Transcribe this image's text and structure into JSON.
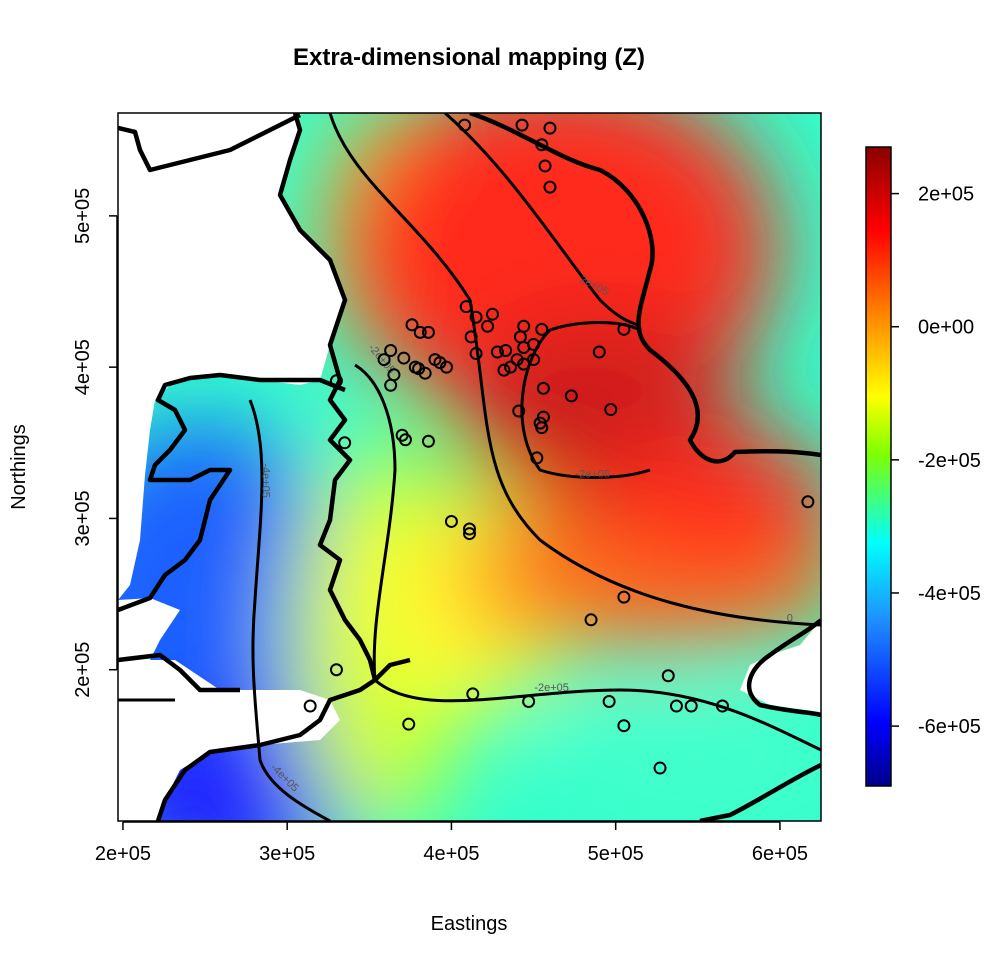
{
  "chart_data": {
    "type": "heatmap",
    "title": "Extra-dimensional mapping (Z)",
    "xlabel": "Eastings",
    "ylabel": "Northings",
    "xlim": [
      197000,
      625000
    ],
    "ylim": [
      100000,
      568000
    ],
    "xticks": [
      200000,
      300000,
      400000,
      500000,
      600000
    ],
    "xtick_labels": [
      "2e+05",
      "3e+05",
      "4e+05",
      "5e+05",
      "6e+05"
    ],
    "yticks": [
      200000,
      300000,
      400000,
      500000
    ],
    "ytick_labels": [
      "2e+05",
      "3e+05",
      "4e+05",
      "5e+05"
    ],
    "colorbar": {
      "range": [
        -690000,
        270000
      ],
      "ticks": [
        200000,
        0,
        -200000,
        -400000,
        -600000
      ],
      "tick_labels": [
        "2e+05",
        "0e+00",
        "-2e+05",
        "-4e+05",
        "-6e+05"
      ],
      "colors": [
        "#8b0000",
        "#ff0000",
        "#ff8c00",
        "#ffff00",
        "#7fff00",
        "#00ffff",
        "#1e90ff",
        "#0000ff",
        "#00008b"
      ]
    },
    "contour_labels": [
      {
        "text": "2e+05",
        "x": 486000,
        "y": 452000,
        "angle": 28
      },
      {
        "text": "-2e+05",
        "x": 356000,
        "y": 404000,
        "angle": 50
      },
      {
        "text": "-2e+05",
        "x": 486000,
        "y": 327000,
        "angle": 0
      },
      {
        "text": "-4e+05",
        "x": 285000,
        "y": 325000,
        "angle": 90
      },
      {
        "text": "0",
        "x": 606000,
        "y": 232000,
        "angle": 0
      },
      {
        "text": "-2e+05",
        "x": 461000,
        "y": 186000,
        "angle": 0
      },
      {
        "text": "-4e+05",
        "x": 297000,
        "y": 127000,
        "angle": 45
      }
    ],
    "points": [
      [
        408000,
        560000
      ],
      [
        443000,
        560000
      ],
      [
        460000,
        558000
      ],
      [
        455000,
        547000
      ],
      [
        457000,
        533000
      ],
      [
        460000,
        519000
      ],
      [
        409000,
        440000
      ],
      [
        425000,
        435000
      ],
      [
        415000,
        433000
      ],
      [
        422000,
        427000
      ],
      [
        444000,
        427000
      ],
      [
        455000,
        425000
      ],
      [
        442000,
        420000
      ],
      [
        450000,
        415000
      ],
      [
        444000,
        413000
      ],
      [
        433000,
        411000
      ],
      [
        440000,
        405000
      ],
      [
        450000,
        405000
      ],
      [
        490000,
        410000
      ],
      [
        505000,
        425000
      ],
      [
        412000,
        420000
      ],
      [
        428000,
        410000
      ],
      [
        415000,
        409000
      ],
      [
        436000,
        400000
      ],
      [
        444000,
        402000
      ],
      [
        432000,
        398000
      ],
      [
        376000,
        428000
      ],
      [
        386000,
        423000
      ],
      [
        381000,
        423000
      ],
      [
        359000,
        405000
      ],
      [
        363000,
        411000
      ],
      [
        371000,
        406000
      ],
      [
        380000,
        399000
      ],
      [
        390000,
        405000
      ],
      [
        393000,
        403000
      ],
      [
        378000,
        400000
      ],
      [
        384000,
        396000
      ],
      [
        397000,
        400000
      ],
      [
        363000,
        388000
      ],
      [
        365000,
        395000
      ],
      [
        330000,
        391000
      ],
      [
        456000,
        386000
      ],
      [
        473000,
        381000
      ],
      [
        497000,
        372000
      ],
      [
        441000,
        371000
      ],
      [
        456000,
        367000
      ],
      [
        454000,
        363000
      ],
      [
        455000,
        360000
      ],
      [
        452000,
        340000
      ],
      [
        370000,
        355000
      ],
      [
        386000,
        351000
      ],
      [
        372000,
        352000
      ],
      [
        335000,
        350000
      ],
      [
        400000,
        298000
      ],
      [
        411000,
        293000
      ],
      [
        411000,
        290000
      ],
      [
        617000,
        311000
      ],
      [
        505000,
        248000
      ],
      [
        485000,
        233000
      ],
      [
        314000,
        176000
      ],
      [
        330000,
        200000
      ],
      [
        413000,
        184000
      ],
      [
        374000,
        164000
      ],
      [
        447000,
        179000
      ],
      [
        496000,
        179000
      ],
      [
        505000,
        163000
      ],
      [
        532000,
        196000
      ],
      [
        537000,
        176000
      ],
      [
        546000,
        176000
      ],
      [
        565000,
        176000
      ],
      [
        527000,
        135000
      ]
    ]
  }
}
